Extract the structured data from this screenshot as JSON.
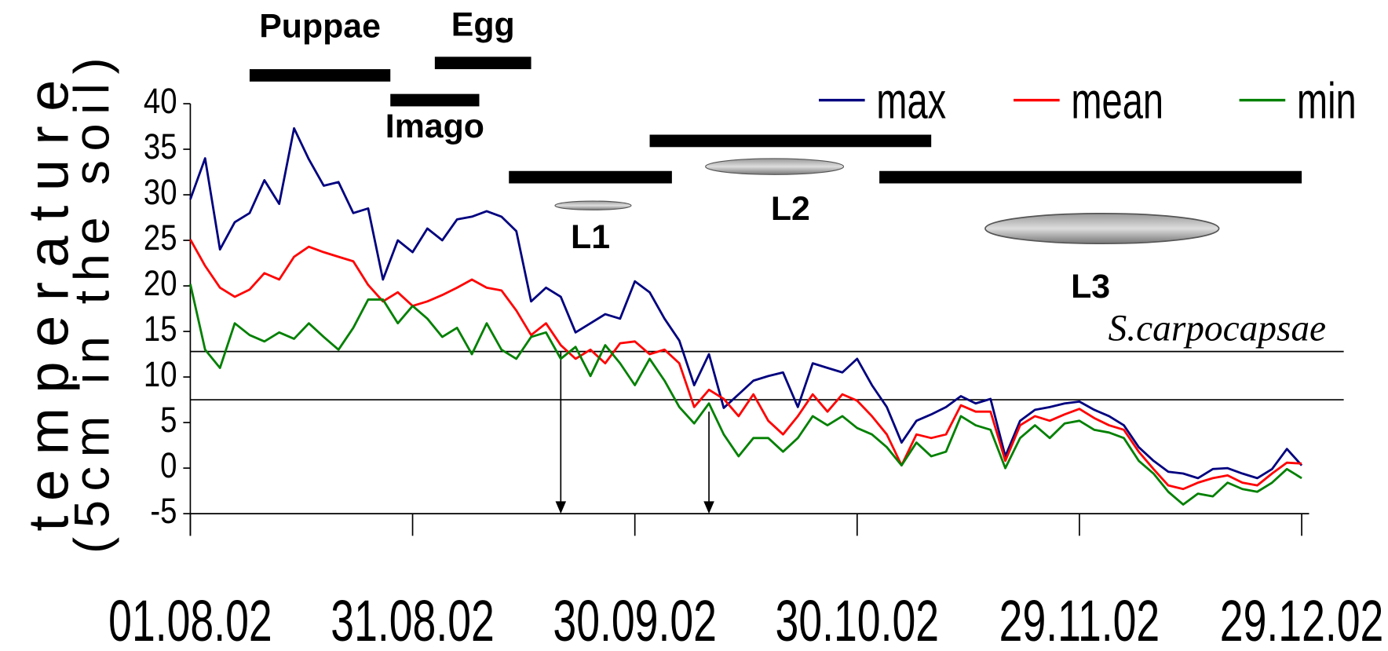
{
  "chart_data": {
    "type": "line",
    "y_label": [
      "temperature",
      "(5cm in the soil)"
    ],
    "x": [
      "01.08.02",
      "03.08.02",
      "05.08.02",
      "07.08.02",
      "09.08.02",
      "11.08.02",
      "13.08.02",
      "15.08.02",
      "17.08.02",
      "19.08.02",
      "21.08.02",
      "23.08.02",
      "25.08.02",
      "27.08.02",
      "29.08.02",
      "31.08.02",
      "02.09.02",
      "04.09.02",
      "06.09.02",
      "08.09.02",
      "10.09.02",
      "12.09.02",
      "14.09.02",
      "16.09.02",
      "18.09.02",
      "20.09.02",
      "22.09.02",
      "24.09.02",
      "26.09.02",
      "28.09.02",
      "30.09.02",
      "02.10.02",
      "04.10.02",
      "06.10.02",
      "08.10.02",
      "10.10.02",
      "12.10.02",
      "14.10.02",
      "16.10.02",
      "18.10.02",
      "20.10.02",
      "22.10.02",
      "24.10.02",
      "26.10.02",
      "28.10.02",
      "30.10.02",
      "01.11.02",
      "03.11.02",
      "05.11.02",
      "07.11.02",
      "09.11.02",
      "11.11.02",
      "13.11.02",
      "15.11.02",
      "17.11.02",
      "19.11.02",
      "21.11.02",
      "23.11.02",
      "25.11.02",
      "27.11.02",
      "29.11.02",
      "01.12.02",
      "03.12.02",
      "05.12.02",
      "07.12.02",
      "09.12.02",
      "11.12.02",
      "13.12.02",
      "15.12.02",
      "17.12.02",
      "19.12.02",
      "21.12.02",
      "23.12.02",
      "25.12.02",
      "27.12.02",
      "29.12.02"
    ],
    "series": [
      {
        "name": "max",
        "color": "#00007f",
        "values": [
          29.5,
          34,
          24,
          27,
          28,
          31.6,
          29,
          37.3,
          33.9,
          31,
          31.4,
          28,
          28.5,
          20.7,
          25,
          23.7,
          26.3,
          25,
          27.3,
          27.6,
          28.2,
          27.6,
          26,
          18.3,
          19.8,
          18.8,
          14.9,
          15.9,
          16.9,
          16.4,
          20.5,
          19.3,
          16.4,
          14,
          9.1,
          12.5,
          6.6,
          8.1,
          9.6,
          10.1,
          10.5,
          6.7,
          11.5,
          11,
          10.5,
          12,
          9.1,
          6.7,
          2.8,
          5.2,
          5.9,
          6.7,
          7.9,
          7.1,
          7.6,
          1.3,
          5.2,
          6.4,
          6.7,
          7.1,
          7.3,
          6.4,
          5.7,
          4.7,
          2.3,
          0.8,
          -0.4,
          -0.6,
          -1.1,
          -0.1,
          0,
          -0.6,
          -1.1,
          -0.1,
          2.1,
          0.3
        ]
      },
      {
        "name": "mean",
        "color": "#ff0000",
        "values": [
          25.1,
          22.2,
          19.8,
          18.8,
          19.6,
          21.4,
          20.7,
          23.2,
          24.3,
          23.7,
          23.2,
          22.7,
          20.1,
          18.3,
          19.3,
          17.8,
          18.3,
          19,
          19.8,
          20.7,
          19.8,
          19.5,
          17.3,
          14.6,
          15.9,
          13.5,
          12,
          13,
          11.5,
          13.7,
          13.9,
          12.5,
          13,
          11.5,
          6.7,
          8.6,
          7.6,
          5.7,
          8.1,
          5.2,
          3.7,
          5.7,
          8.1,
          6.2,
          8.1,
          7.4,
          5.7,
          3.7,
          0.3,
          3.7,
          3.3,
          3.7,
          6.9,
          6.2,
          6.2,
          0.8,
          4.7,
          5.7,
          5.2,
          5.9,
          6.5,
          5.5,
          4.7,
          4.2,
          1.8,
          -0.1,
          -1.9,
          -2.3,
          -1.6,
          -1.1,
          -0.8,
          -1.6,
          -1.9,
          -0.6,
          0.6,
          0.5
        ]
      },
      {
        "name": "min",
        "color": "#008000",
        "values": [
          20.2,
          13,
          11,
          15.9,
          14.6,
          13.9,
          14.9,
          14.2,
          15.9,
          14.4,
          13,
          15.4,
          18.5,
          18.5,
          15.9,
          17.8,
          16.4,
          14.4,
          15.4,
          12.5,
          15.9,
          13,
          12,
          14.4,
          14.9,
          12,
          13.3,
          10.1,
          13.5,
          11.5,
          9.1,
          12,
          9.6,
          6.7,
          4.9,
          7.1,
          3.7,
          1.3,
          3.3,
          3.3,
          1.8,
          3.3,
          5.7,
          4.7,
          5.7,
          4.4,
          3.7,
          2.3,
          0.3,
          2.8,
          1.3,
          1.8,
          5.7,
          4.7,
          4.2,
          0,
          3.3,
          4.7,
          3.3,
          4.9,
          5.2,
          4.2,
          3.9,
          3.3,
          0.8,
          -0.6,
          -2.6,
          -4,
          -2.8,
          -3.1,
          -1.6,
          -2.3,
          -2.6,
          -1.6,
          -0.1,
          -1.1
        ]
      }
    ],
    "xlim": [
      "01.08.02",
      "30.12.02"
    ],
    "xticks": [
      "01.08.02",
      "31.08.02",
      "30.09.02",
      "30.10.02",
      "29.11.02",
      "29.12.02"
    ],
    "ylim": [
      -5,
      40
    ],
    "yticks": [
      -5,
      0,
      5,
      10,
      15,
      20,
      25,
      30,
      35,
      40
    ],
    "hlines": [
      12.8,
      7.5
    ],
    "hline_label": "S.carpocapsae",
    "arrows": [
      {
        "x": "20.09.02",
        "from": 12.8
      },
      {
        "x": "10.10.02",
        "from": 6.2
      }
    ],
    "stages": [
      {
        "name": "Puppae",
        "start": "09.08.02",
        "end": "28.08.02"
      },
      {
        "name": "Imago",
        "start": "28.08.02",
        "end": "09.09.02"
      },
      {
        "name": "Egg",
        "start": "03.09.02",
        "end": "16.09.02"
      },
      {
        "name": "L1",
        "start": "13.09.02",
        "end": "05.10.02"
      },
      {
        "name": "L2",
        "start": "02.10.02",
        "end": "09.11.02"
      },
      {
        "name": "L3",
        "start": "02.11.02",
        "end": "29.12.02"
      }
    ]
  }
}
